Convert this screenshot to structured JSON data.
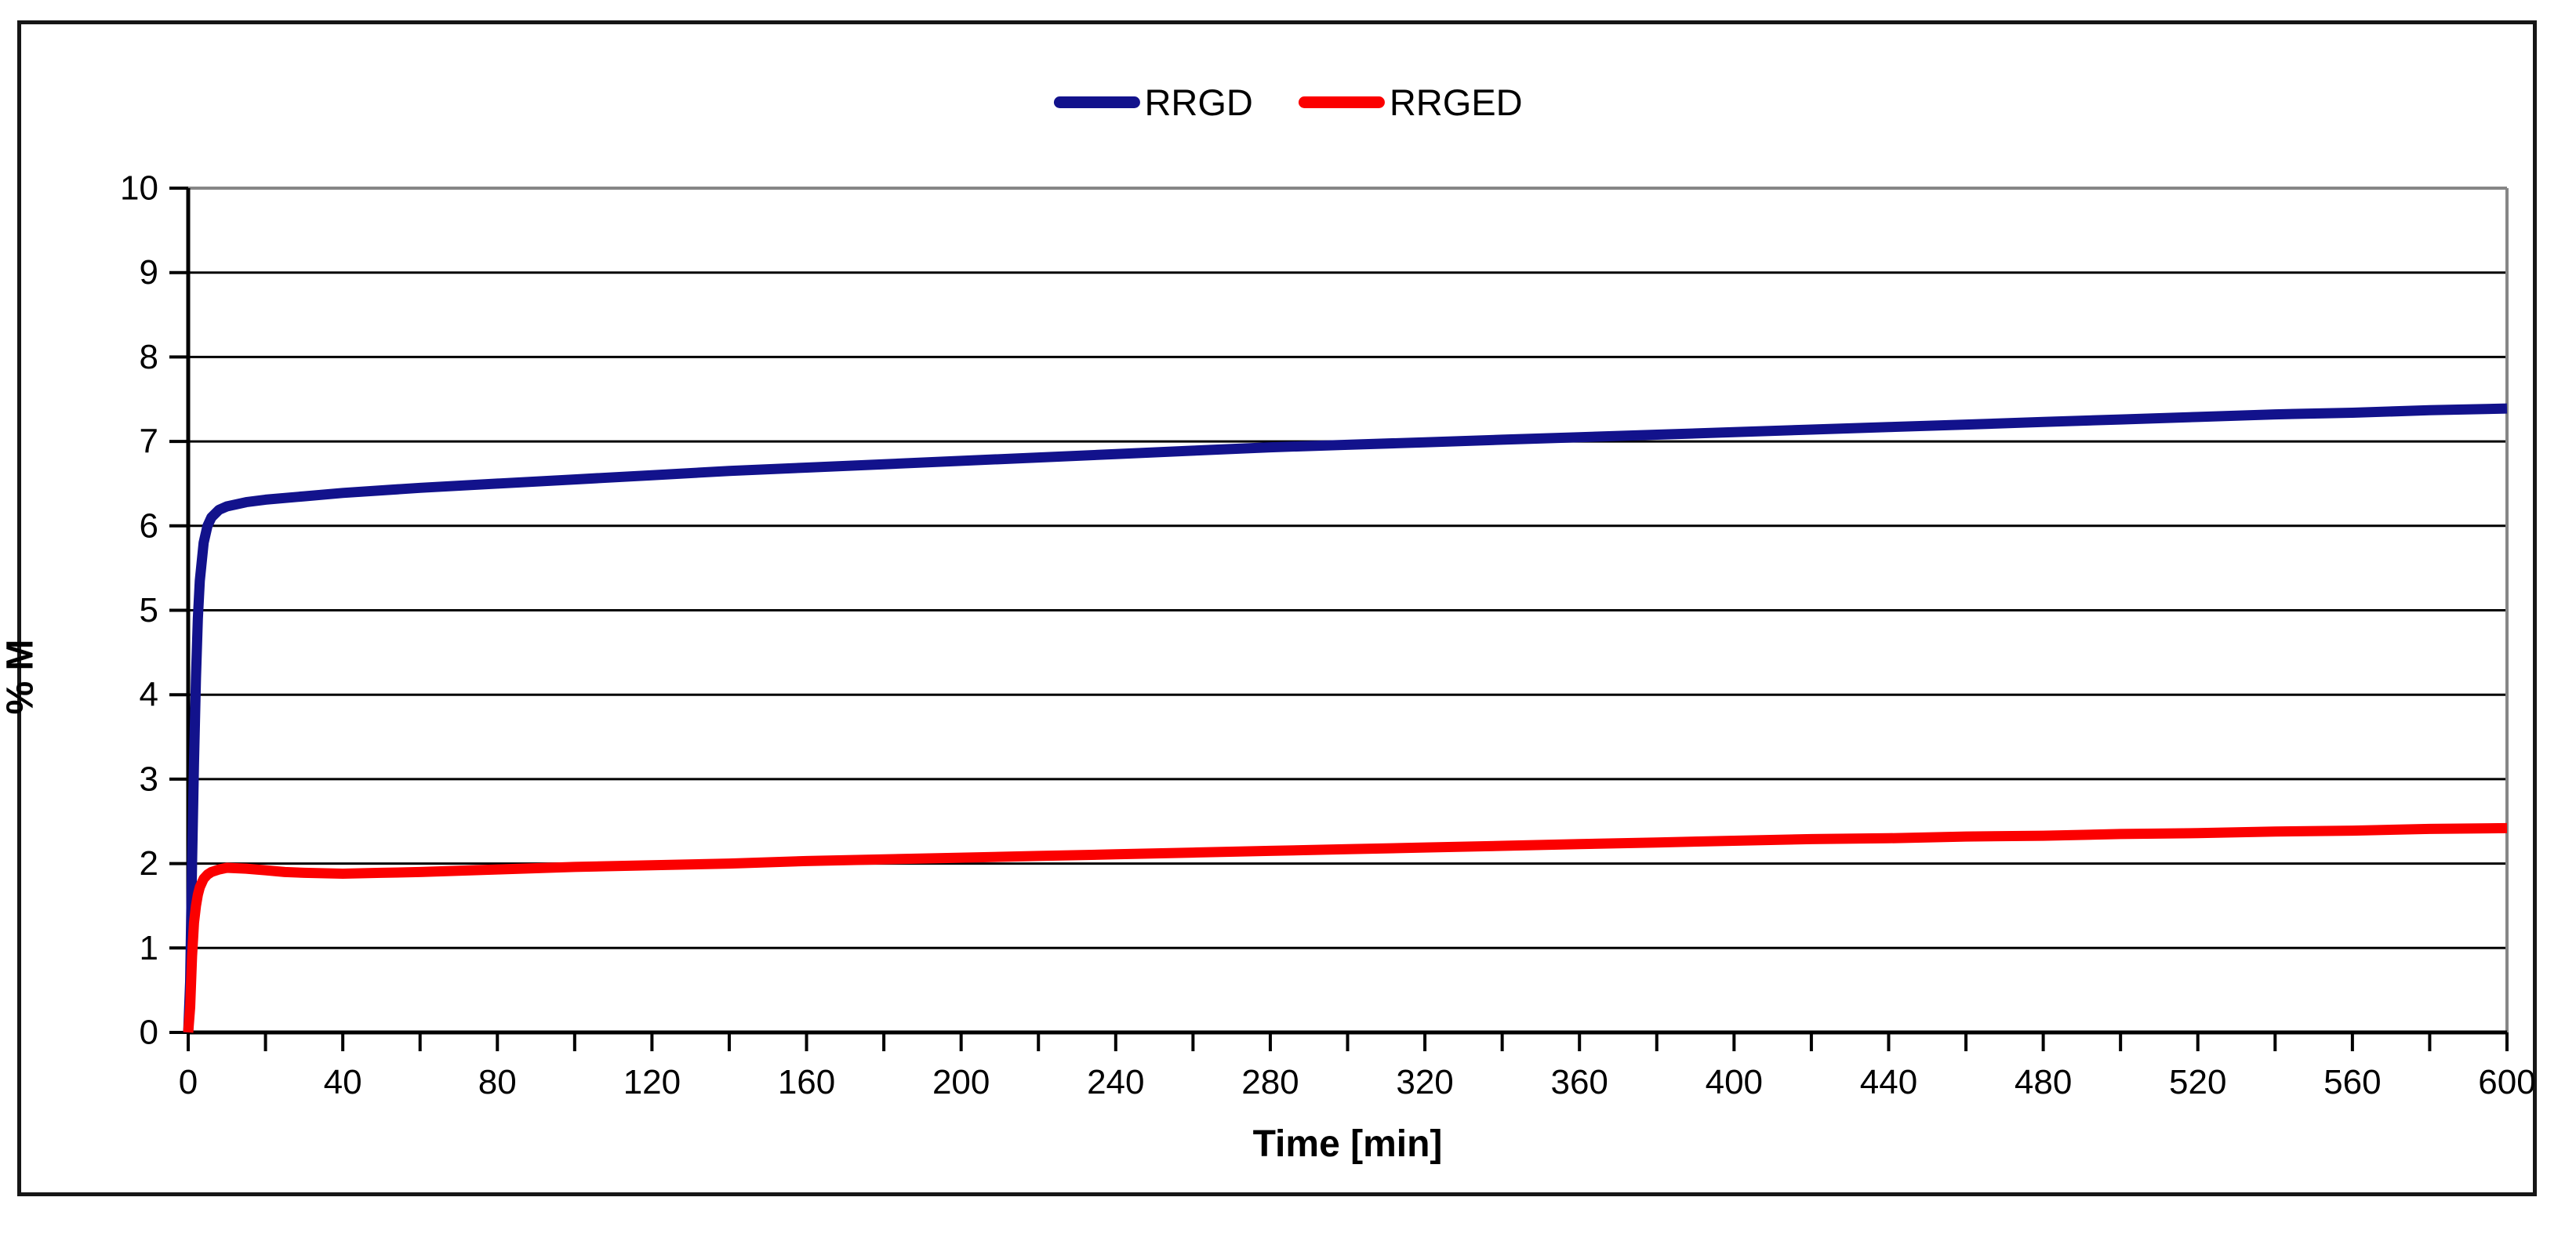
{
  "legend": {
    "items": [
      {
        "label": "RRGD",
        "color": "#12128c"
      },
      {
        "label": "RRGED",
        "color": "#fb0000"
      }
    ]
  },
  "chart_data": {
    "type": "line",
    "title": "",
    "xlabel": "Time [min]",
    "ylabel": "% M",
    "xlim": [
      0,
      600
    ],
    "ylim": [
      0,
      10
    ],
    "x_major_tick": 40,
    "x_minor_tick": 20,
    "y_major_tick": 1,
    "grid": "horizontal",
    "legend_position": "top-center",
    "axis_color": "#000000",
    "gridline_color": "#000000",
    "plot_border_color": "#868686",
    "series": [
      {
        "name": "RRGD",
        "color": "#12128c",
        "points": [
          [
            0,
            0
          ],
          [
            0.5,
            0.6
          ],
          [
            1,
            2.0
          ],
          [
            1.5,
            3.2
          ],
          [
            2,
            4.2
          ],
          [
            2.5,
            4.9
          ],
          [
            3,
            5.35
          ],
          [
            4,
            5.8
          ],
          [
            5,
            6.0
          ],
          [
            6,
            6.1
          ],
          [
            8,
            6.19
          ],
          [
            10,
            6.23
          ],
          [
            15,
            6.28
          ],
          [
            20,
            6.31
          ],
          [
            30,
            6.35
          ],
          [
            40,
            6.39
          ],
          [
            60,
            6.45
          ],
          [
            80,
            6.5
          ],
          [
            100,
            6.55
          ],
          [
            120,
            6.6
          ],
          [
            140,
            6.65
          ],
          [
            160,
            6.69
          ],
          [
            180,
            6.73
          ],
          [
            200,
            6.77
          ],
          [
            220,
            6.81
          ],
          [
            240,
            6.85
          ],
          [
            260,
            6.89
          ],
          [
            280,
            6.93
          ],
          [
            300,
            6.96
          ],
          [
            320,
            6.99
          ],
          [
            340,
            7.02
          ],
          [
            360,
            7.05
          ],
          [
            380,
            7.08
          ],
          [
            400,
            7.11
          ],
          [
            420,
            7.14
          ],
          [
            440,
            7.17
          ],
          [
            460,
            7.2
          ],
          [
            480,
            7.23
          ],
          [
            500,
            7.26
          ],
          [
            520,
            7.29
          ],
          [
            540,
            7.32
          ],
          [
            560,
            7.34
          ],
          [
            580,
            7.37
          ],
          [
            600,
            7.39
          ]
        ]
      },
      {
        "name": "RRGED",
        "color": "#fb0000",
        "points": [
          [
            0,
            0
          ],
          [
            0.5,
            0.3
          ],
          [
            1,
            0.9
          ],
          [
            1.5,
            1.3
          ],
          [
            2,
            1.5
          ],
          [
            2.5,
            1.63
          ],
          [
            3,
            1.72
          ],
          [
            4,
            1.82
          ],
          [
            5,
            1.87
          ],
          [
            6,
            1.9
          ],
          [
            8,
            1.93
          ],
          [
            10,
            1.95
          ],
          [
            15,
            1.94
          ],
          [
            20,
            1.92
          ],
          [
            25,
            1.9
          ],
          [
            30,
            1.89
          ],
          [
            40,
            1.88
          ],
          [
            50,
            1.89
          ],
          [
            60,
            1.9
          ],
          [
            80,
            1.93
          ],
          [
            100,
            1.96
          ],
          [
            120,
            1.98
          ],
          [
            140,
            2.0
          ],
          [
            160,
            2.03
          ],
          [
            180,
            2.05
          ],
          [
            200,
            2.07
          ],
          [
            220,
            2.09
          ],
          [
            240,
            2.11
          ],
          [
            260,
            2.13
          ],
          [
            280,
            2.15
          ],
          [
            300,
            2.17
          ],
          [
            320,
            2.19
          ],
          [
            340,
            2.21
          ],
          [
            360,
            2.23
          ],
          [
            380,
            2.25
          ],
          [
            400,
            2.27
          ],
          [
            420,
            2.29
          ],
          [
            440,
            2.3
          ],
          [
            460,
            2.32
          ],
          [
            480,
            2.33
          ],
          [
            500,
            2.35
          ],
          [
            520,
            2.36
          ],
          [
            540,
            2.38
          ],
          [
            560,
            2.39
          ],
          [
            580,
            2.41
          ],
          [
            600,
            2.42
          ]
        ]
      }
    ],
    "y_tick_labels": [
      "0",
      "1",
      "2",
      "3",
      "4",
      "5",
      "6",
      "7",
      "8",
      "9",
      "10"
    ],
    "x_tick_labels": [
      "0",
      "40",
      "80",
      "120",
      "160",
      "200",
      "240",
      "280",
      "320",
      "360",
      "400",
      "440",
      "480",
      "520",
      "560",
      "600"
    ]
  }
}
